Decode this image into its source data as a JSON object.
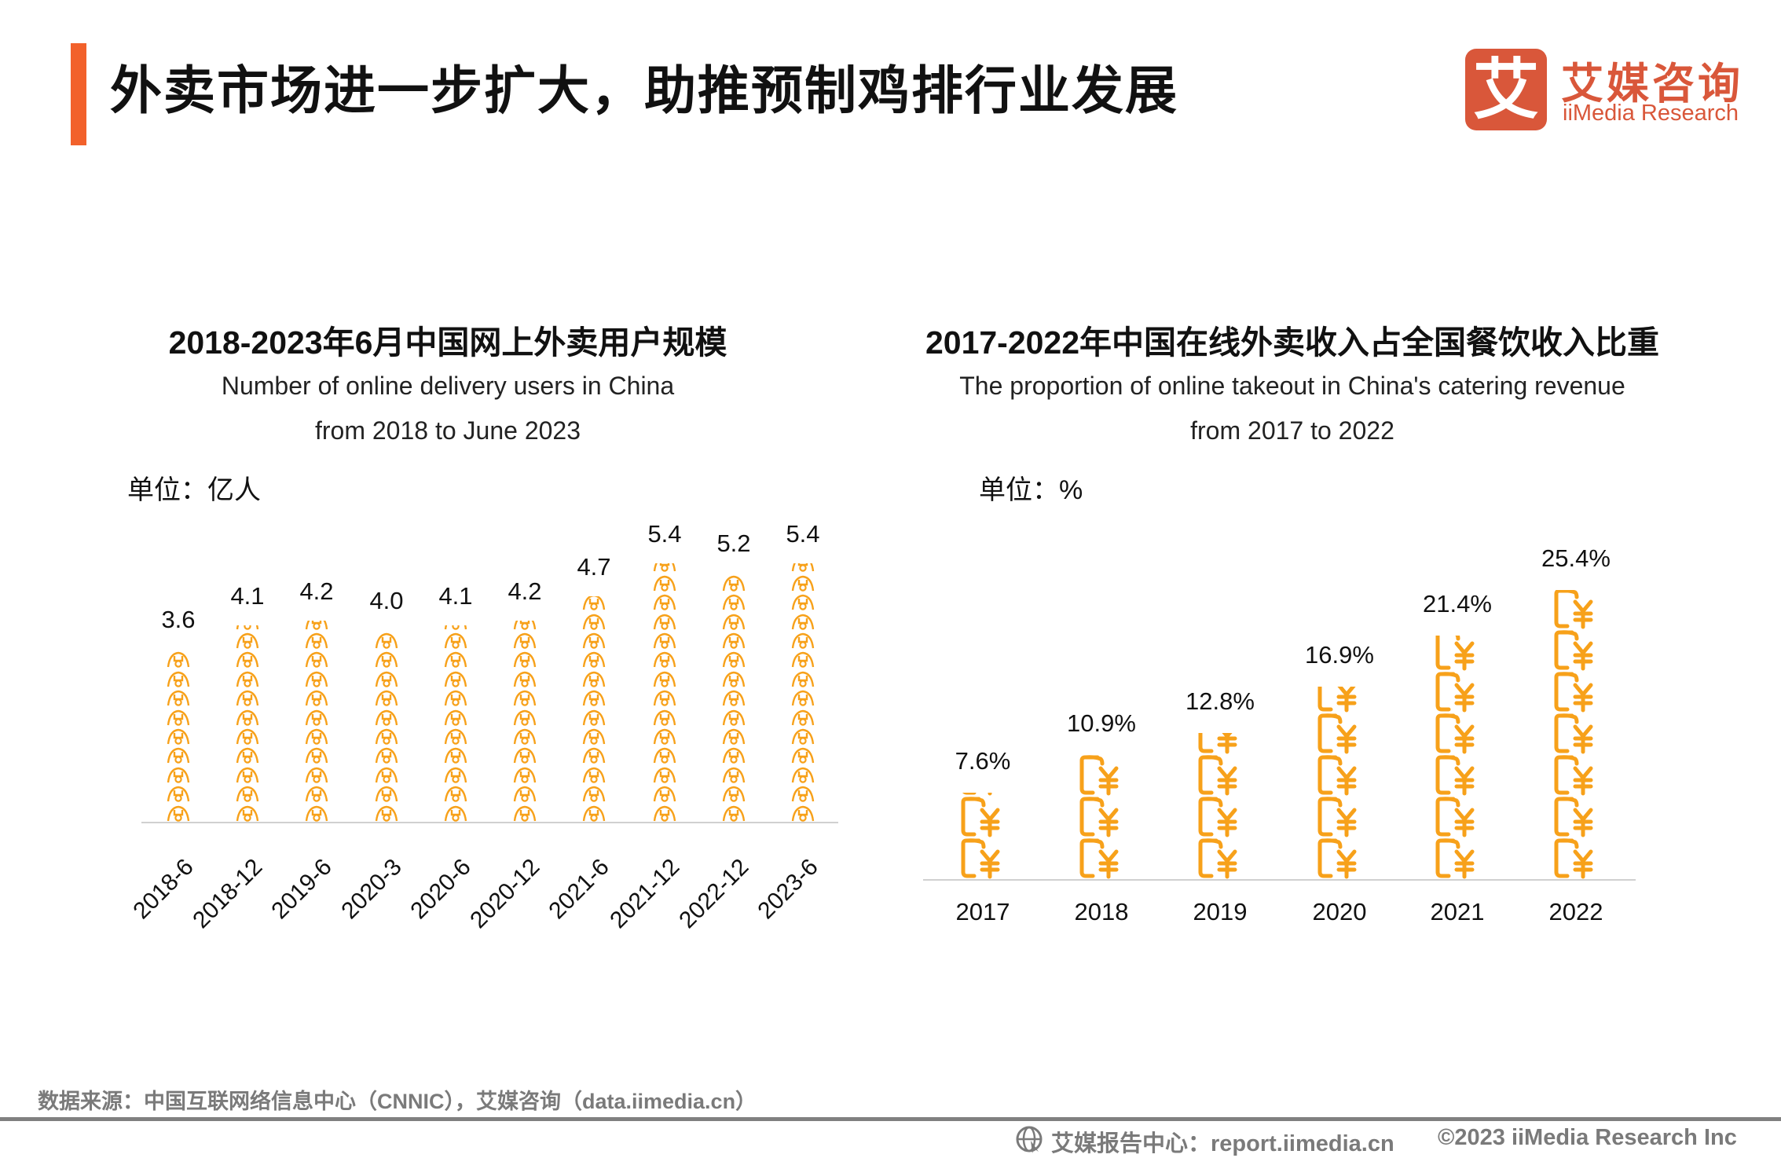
{
  "header": {
    "title": "外卖市场进一步扩大，助推预制鸡排行业发展",
    "accent_color": "#f2612b",
    "logo": {
      "mark": "艾",
      "cn": "艾媒咨询",
      "en": "iiMedia Research",
      "color": "#d9573a"
    }
  },
  "chart_data": [
    {
      "type": "bar",
      "style": "pictogram",
      "icon": "person-icon",
      "color": "#f7a11a",
      "title": "2018-2023年6月中国网上外卖用户规模",
      "subtitle": [
        "Number of online delivery users in China",
        "from 2018 to June 2023"
      ],
      "unit_label": "单位：亿人",
      "categories": [
        "2018-6",
        "2018-12",
        "2019-6",
        "2020-3",
        "2020-6",
        "2020-12",
        "2021-6",
        "2021-12",
        "2022-12",
        "2023-6"
      ],
      "values": [
        3.6,
        4.1,
        4.2,
        4.0,
        4.1,
        4.2,
        4.7,
        5.4,
        5.2,
        5.4
      ],
      "value_labels": [
        "3.6",
        "4.1",
        "4.2",
        "4.0",
        "4.1",
        "4.2",
        "4.7",
        "5.4",
        "5.2",
        "5.4"
      ]
    },
    {
      "type": "bar",
      "style": "pictogram",
      "icon": "yen-wallet-icon",
      "color": "#f7a11a",
      "title": "2017-2022年中国在线外卖收入占全国餐饮收入比重",
      "subtitle": [
        "The proportion of online takeout in China's catering revenue",
        "from 2017 to 2022"
      ],
      "unit_label": "单位：%",
      "categories": [
        "2017",
        "2018",
        "2019",
        "2020",
        "2021",
        "2022"
      ],
      "values": [
        7.6,
        10.9,
        12.8,
        16.9,
        21.4,
        25.4
      ],
      "value_labels": [
        "7.6%",
        "10.9%",
        "12.8%",
        "16.9%",
        "21.4%",
        "25.4%"
      ]
    }
  ],
  "footer": {
    "source": "数据来源：中国互联网络信息中心（CNNIC），艾媒咨询（data.iimedia.cn）",
    "report_center": "艾媒报告中心：report.iimedia.cn",
    "copyright": "©2023  iiMedia Research  Inc"
  }
}
